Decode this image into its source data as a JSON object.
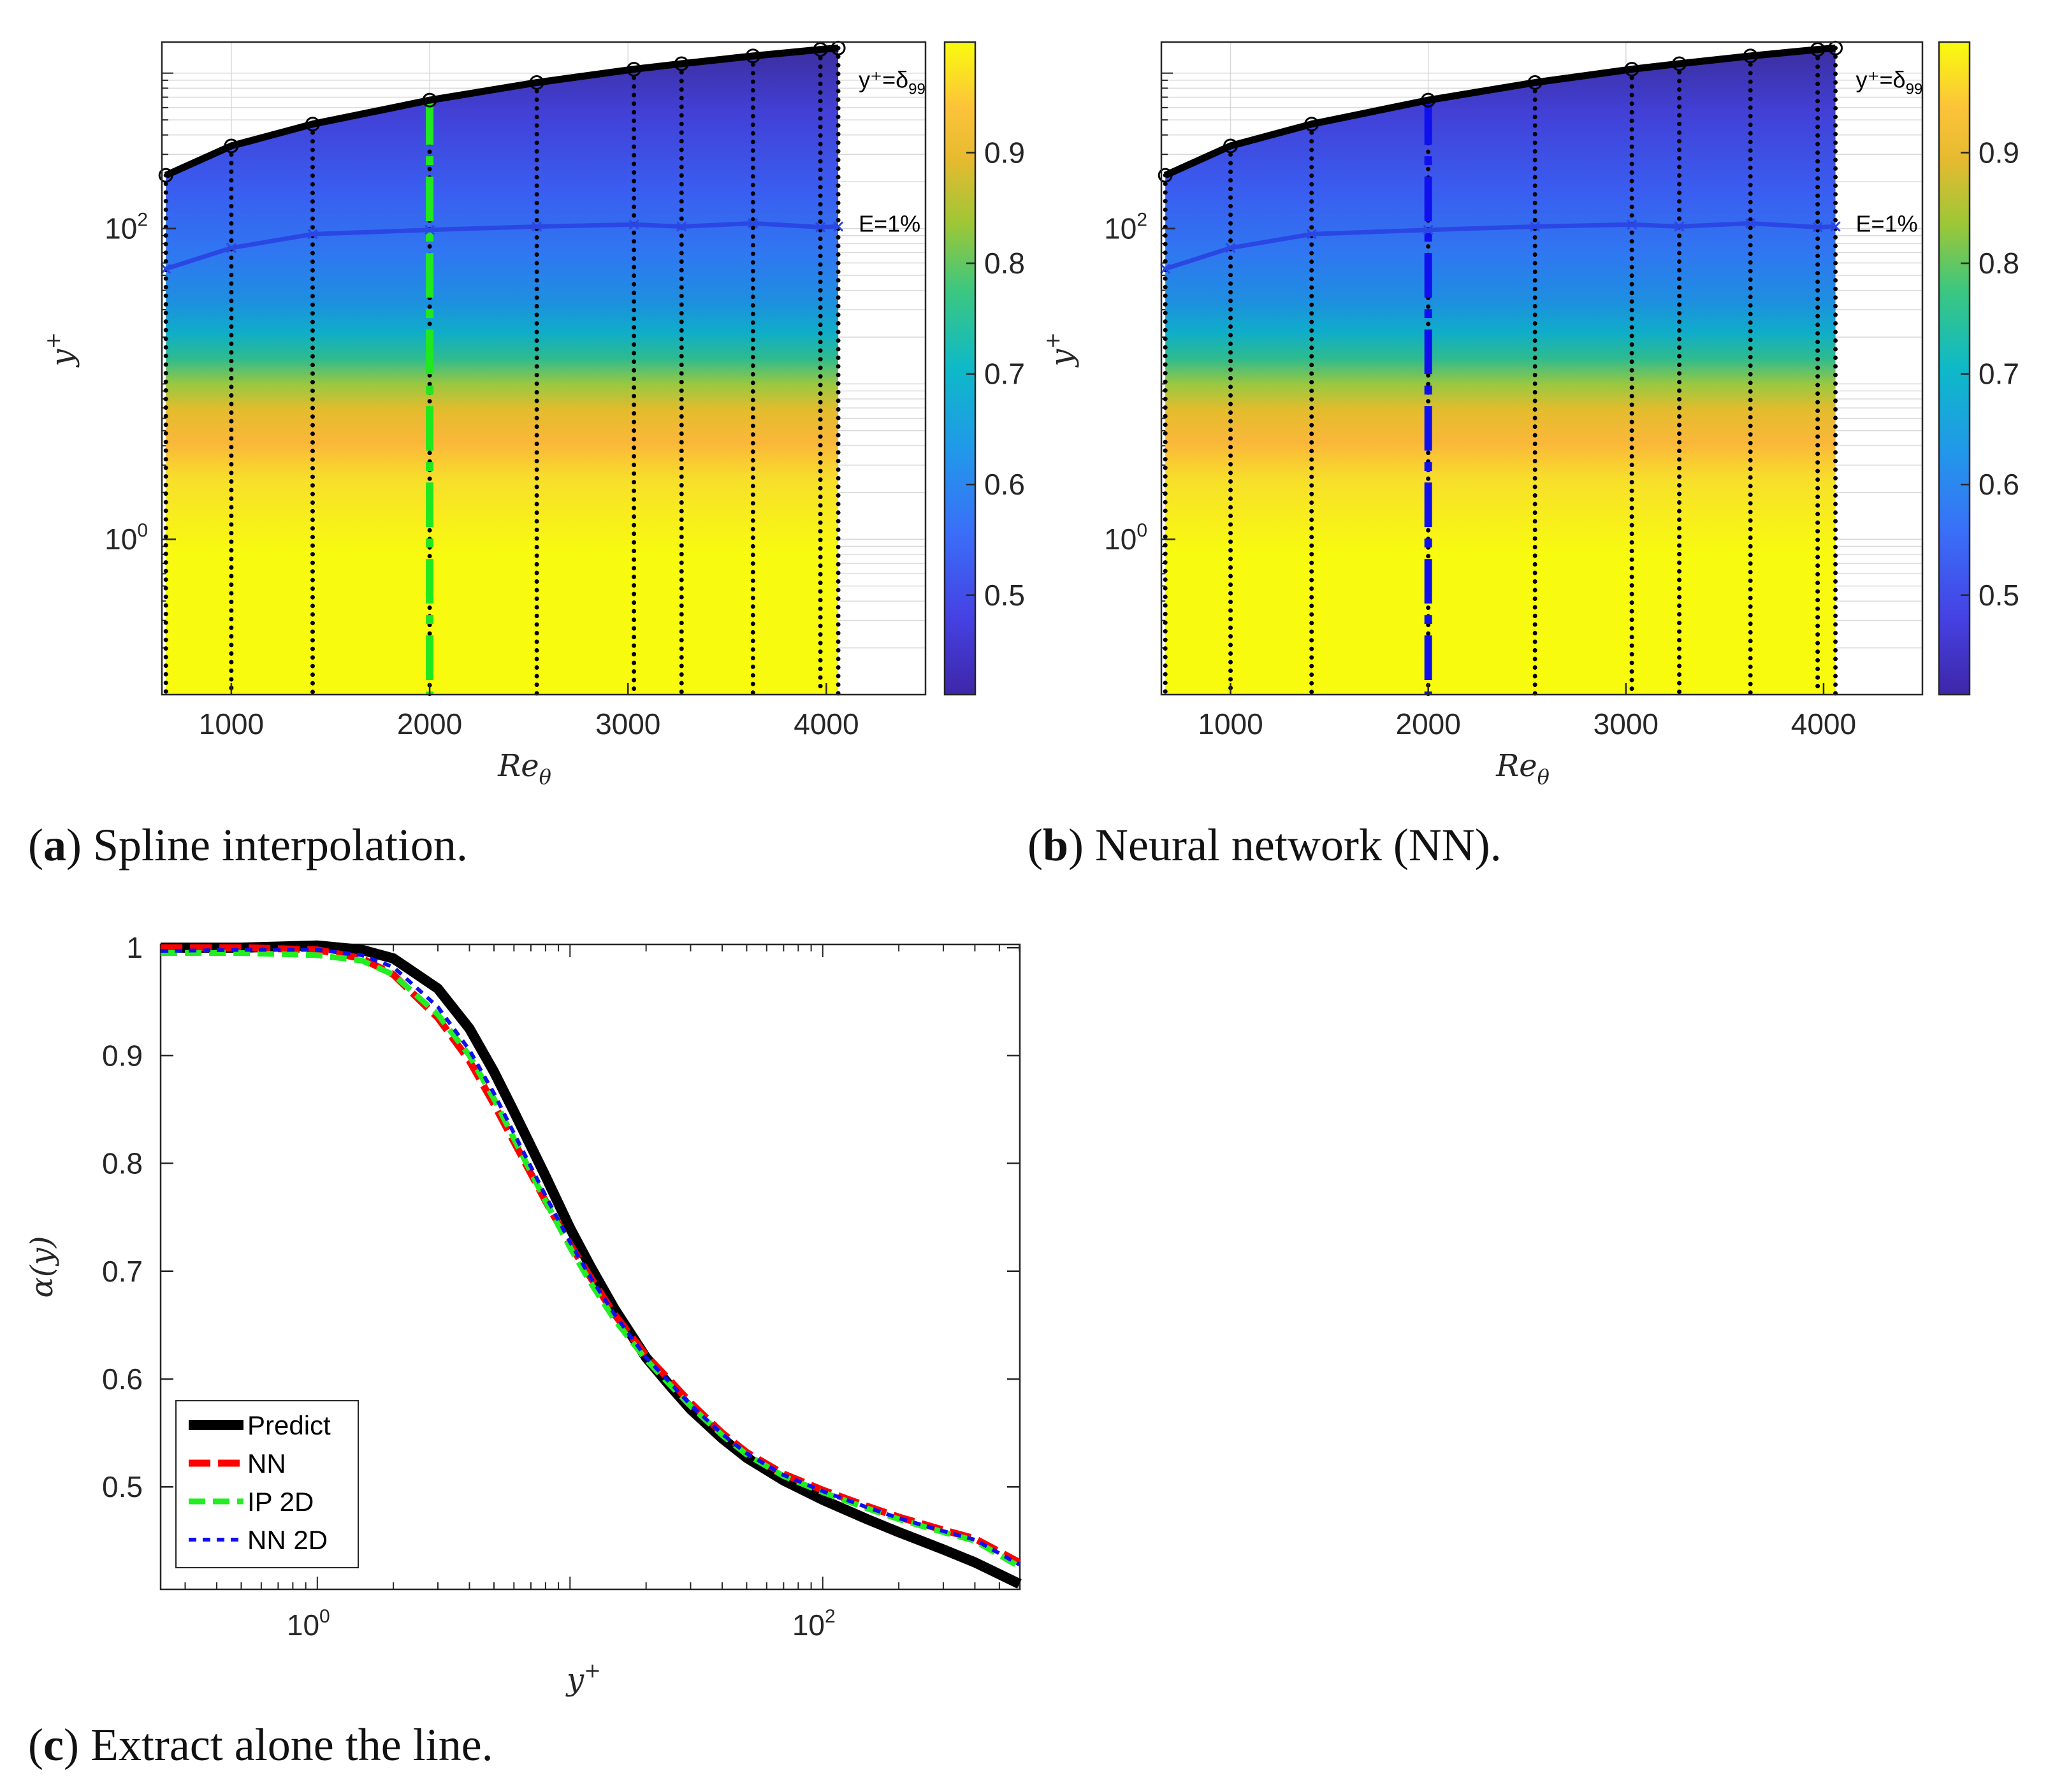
{
  "captions": {
    "a": {
      "tag": "a",
      "text": ") Spline interpolation."
    },
    "b": {
      "tag": "b",
      "text": ") Neural network (NN)."
    },
    "c": {
      "tag": "c",
      "text": ") Extract alone the line."
    }
  },
  "colors": {
    "delta99_line": "#000000",
    "e1_line": "#2b47e3",
    "highlight_a": "#1fe81f",
    "highlight_b": "#1010ee",
    "predict": "#000000",
    "nn": "#ff0000",
    "ip2d": "#22ee22",
    "nn2d": "#1010ee",
    "gridline": "#d9d9d9"
  },
  "chart_data": [
    {
      "id": "a",
      "type": "heatmap",
      "title": "",
      "xlabel": "Re",
      "xlabel_sub": "θ",
      "ylabel": "y",
      "ylabel_sup": "+",
      "xlim": [
        650,
        4500
      ],
      "ylim_log10": [
        -1,
        3.2
      ],
      "xticks": [
        1000,
        2000,
        3000,
        4000
      ],
      "xtick_labels": [
        "1000",
        "2000",
        "3000",
        "4000"
      ],
      "yticks": [
        {
          "base": "10",
          "exp": "0",
          "value": 1
        },
        {
          "base": "10",
          "exp": "2",
          "value": 100
        }
      ],
      "colorbar": {
        "min": 0.41,
        "max": 1.0,
        "ticks": [
          0.5,
          0.6,
          0.7,
          0.8,
          0.9
        ],
        "tick_labels": [
          "0.5",
          "0.6",
          "0.7",
          "0.8",
          "0.9"
        ],
        "colormap": "parula"
      },
      "reynolds_stations": [
        670,
        1000,
        1410,
        2000,
        2540,
        3030,
        3270,
        3630,
        3970,
        4060
      ],
      "delta99_curve": {
        "label": "y⁺=δ",
        "label_sub": "99",
        "x": [
          670,
          1000,
          1410,
          2000,
          2540,
          3030,
          3270,
          3630,
          3970,
          4060
        ],
        "y": [
          220,
          340,
          470,
          670,
          870,
          1060,
          1150,
          1290,
          1420,
          1450
        ]
      },
      "e1_curve": {
        "label": "E=1%",
        "x": [
          670,
          1000,
          1410,
          2000,
          2540,
          3030,
          3270,
          3630,
          3970,
          4060
        ],
        "y": [
          55,
          75,
          92,
          98,
          103,
          106,
          103,
          108,
          102,
          103
        ]
      },
      "highlight_line": {
        "x": 2000,
        "style": "dash-dot"
      }
    },
    {
      "id": "b",
      "type": "heatmap",
      "title": "",
      "xlabel": "Re",
      "xlabel_sub": "θ",
      "ylabel": "y",
      "ylabel_sup": "+",
      "xlim": [
        650,
        4500
      ],
      "ylim_log10": [
        -1,
        3.2
      ],
      "xticks": [
        1000,
        2000,
        3000,
        4000
      ],
      "xtick_labels": [
        "1000",
        "2000",
        "3000",
        "4000"
      ],
      "yticks": [
        {
          "base": "10",
          "exp": "0",
          "value": 1
        },
        {
          "base": "10",
          "exp": "2",
          "value": 100
        }
      ],
      "colorbar": {
        "min": 0.41,
        "max": 1.0,
        "ticks": [
          0.5,
          0.6,
          0.7,
          0.8,
          0.9
        ],
        "tick_labels": [
          "0.5",
          "0.6",
          "0.7",
          "0.8",
          "0.9"
        ],
        "colormap": "parula"
      },
      "reynolds_stations": [
        670,
        1000,
        1410,
        2000,
        2540,
        3030,
        3270,
        3630,
        3970,
        4060
      ],
      "delta99_curve": {
        "label": "y⁺=δ",
        "label_sub": "99",
        "x": [
          670,
          1000,
          1410,
          2000,
          2540,
          3030,
          3270,
          3630,
          3970,
          4060
        ],
        "y": [
          220,
          340,
          470,
          670,
          870,
          1060,
          1150,
          1290,
          1420,
          1450
        ]
      },
      "e1_curve": {
        "label": "E=1%",
        "x": [
          670,
          1000,
          1410,
          2000,
          2540,
          3030,
          3270,
          3630,
          3970,
          4060
        ],
        "y": [
          55,
          75,
          92,
          98,
          103,
          106,
          103,
          108,
          102,
          103
        ]
      },
      "highlight_line": {
        "x": 2000,
        "style": "dash-dot"
      }
    },
    {
      "id": "c",
      "type": "line",
      "title": "",
      "xlabel": "y",
      "xlabel_sup": "+",
      "ylabel": "α(y)",
      "xscale": "log",
      "xlim_log10": [
        -0.62,
        2.78
      ],
      "ylim": [
        0.405,
        1.003
      ],
      "xticks": [
        {
          "base": "10",
          "exp": "0",
          "value": 1
        },
        {
          "base": "10",
          "exp": "2",
          "value": 100
        }
      ],
      "yticks": [
        0.5,
        0.6,
        0.7,
        0.8,
        0.9,
        1
      ],
      "ytick_labels": [
        "0.5",
        "0.6",
        "0.7",
        "0.8",
        "0.9",
        "1"
      ],
      "legend_position": "bottom-left",
      "series": [
        {
          "name": "Predict",
          "style": "solid",
          "x": [
            0.24,
            0.5,
            1,
            1.5,
            2,
            3,
            4,
            5,
            6,
            8,
            10,
            12,
            15,
            20,
            25,
            30,
            40,
            50,
            70,
            100,
            150,
            200,
            300,
            400,
            600
          ],
          "y": [
            1.0,
            1.0,
            1.002,
            0.998,
            0.99,
            0.962,
            0.925,
            0.885,
            0.848,
            0.788,
            0.74,
            0.705,
            0.665,
            0.62,
            0.593,
            0.572,
            0.545,
            0.527,
            0.506,
            0.488,
            0.47,
            0.458,
            0.442,
            0.43,
            0.41
          ]
        },
        {
          "name": "NN",
          "style": "dashed",
          "x": [
            0.24,
            0.5,
            1,
            1.5,
            2,
            3,
            4,
            5,
            6,
            8,
            10,
            12,
            15,
            20,
            25,
            30,
            40,
            50,
            70,
            100,
            150,
            200,
            300,
            400,
            600
          ],
          "y": [
            1.0,
            1.0,
            0.998,
            0.99,
            0.975,
            0.935,
            0.895,
            0.855,
            0.82,
            0.765,
            0.725,
            0.695,
            0.66,
            0.622,
            0.598,
            0.578,
            0.55,
            0.532,
            0.512,
            0.497,
            0.482,
            0.472,
            0.46,
            0.452,
            0.43
          ]
        },
        {
          "name": "IP 2D",
          "style": "dashed",
          "x": [
            0.24,
            0.5,
            1,
            1.5,
            2,
            3,
            4,
            5,
            6,
            8,
            10,
            12,
            15,
            20,
            25,
            30,
            40,
            50,
            70,
            100,
            150,
            200,
            300,
            400,
            600
          ],
          "y": [
            0.995,
            0.995,
            0.993,
            0.988,
            0.975,
            0.938,
            0.9,
            0.86,
            0.823,
            0.765,
            0.722,
            0.69,
            0.655,
            0.618,
            0.594,
            0.575,
            0.548,
            0.53,
            0.51,
            0.495,
            0.48,
            0.47,
            0.458,
            0.45,
            0.426
          ]
        },
        {
          "name": "NN 2D",
          "style": "dotted",
          "x": [
            0.24,
            0.5,
            1,
            1.5,
            2,
            3,
            4,
            5,
            6,
            8,
            10,
            12,
            15,
            20,
            25,
            30,
            40,
            50,
            70,
            100,
            150,
            200,
            300,
            400,
            600
          ],
          "y": [
            0.997,
            0.998,
            0.998,
            0.993,
            0.982,
            0.945,
            0.905,
            0.865,
            0.828,
            0.77,
            0.727,
            0.695,
            0.66,
            0.62,
            0.596,
            0.576,
            0.549,
            0.531,
            0.511,
            0.496,
            0.481,
            0.471,
            0.459,
            0.451,
            0.428
          ]
        }
      ]
    }
  ]
}
